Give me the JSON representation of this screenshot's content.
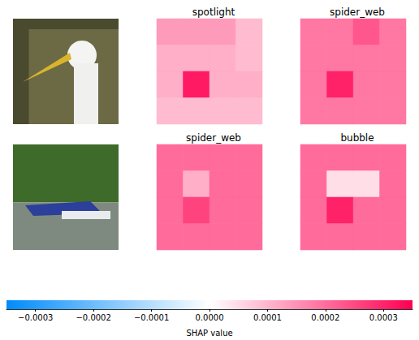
{
  "chart_data": {
    "type": "heatmap",
    "tick_labels": false,
    "panels": [
      [
        {
          "title": "spotlight",
          "cells": [
            [
              0.00015,
              0.00015,
              0.00015,
              0.0001
            ],
            [
              0.00012,
              0.00012,
              0.00012,
              0.0001
            ],
            [
              0.00012,
              0.00034,
              0.00012,
              0.00012
            ],
            [
              0.0001,
              0.0001,
              0.0001,
              0.0001
            ]
          ]
        },
        {
          "title": "spider_web",
          "cells": [
            [
              0.0002,
              0.0002,
              0.00025,
              0.0002
            ],
            [
              0.0002,
              0.0002,
              0.0002,
              0.0002
            ],
            [
              0.0002,
              0.00033,
              0.0002,
              0.0002
            ],
            [
              0.0002,
              0.0002,
              0.0002,
              0.0002
            ]
          ]
        }
      ],
      [
        {
          "title": "spider_web",
          "cells": [
            [
              0.00022,
              0.00022,
              0.00022,
              0.00022
            ],
            [
              0.00022,
              0.00012,
              0.00022,
              0.00022
            ],
            [
              0.00022,
              0.00028,
              0.00022,
              0.00022
            ],
            [
              0.00022,
              0.00022,
              0.00022,
              0.00022
            ]
          ]
        },
        {
          "title": "bubble",
          "cells": [
            [
              0.00022,
              0.00022,
              0.00022,
              0.00022
            ],
            [
              0.00022,
              5e-05,
              5e-05,
              0.00022
            ],
            [
              0.00022,
              0.00033,
              0.00022,
              0.00022
            ],
            [
              0.00022,
              0.00022,
              0.00022,
              0.00022
            ]
          ]
        }
      ]
    ],
    "colorbar": {
      "label": "SHAP value",
      "range": [
        -0.00035,
        0.00035
      ],
      "ticks": [
        {
          "value": -0.0003,
          "label": "−0.0003"
        },
        {
          "value": -0.0002,
          "label": "−0.0002"
        },
        {
          "value": -0.0001,
          "label": "−0.0001"
        },
        {
          "value": 0,
          "label": "0.0000"
        },
        0.0001,
        0.0002,
        0.0003
      ]
    }
  }
}
